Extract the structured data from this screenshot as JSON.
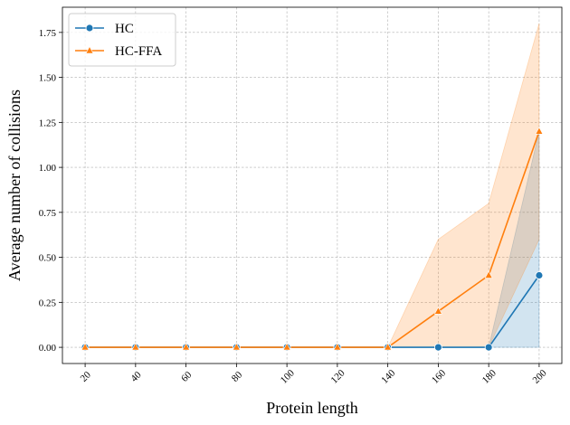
{
  "chart_data": {
    "type": "line",
    "xlabel": "Protein length",
    "ylabel": "Average number of collisions",
    "x": [
      20,
      40,
      60,
      80,
      100,
      120,
      140,
      160,
      180,
      200
    ],
    "xticks": [
      "20",
      "40",
      "60",
      "80",
      "100",
      "120",
      "140",
      "160",
      "180",
      "200"
    ],
    "yticks": [
      "0.00",
      "0.25",
      "0.50",
      "0.75",
      "1.00",
      "1.25",
      "1.50",
      "1.75"
    ],
    "ylim": [
      -0.09,
      1.89
    ],
    "grid": true,
    "legend_position": "top-left",
    "series": [
      {
        "name": "HC",
        "color": "#1f77b4",
        "marker": "circle",
        "values": [
          0,
          0,
          0,
          0,
          0,
          0,
          0,
          0,
          0,
          0.4
        ],
        "band_lower": [
          0,
          0,
          0,
          0,
          0,
          0,
          0,
          0,
          0,
          0
        ],
        "band_upper": [
          0,
          0,
          0,
          0,
          0,
          0,
          0,
          0,
          0,
          1.2
        ]
      },
      {
        "name": "HC-FFA",
        "color": "#ff7f0e",
        "marker": "triangle",
        "values": [
          0,
          0,
          0,
          0,
          0,
          0,
          0,
          0.2,
          0.4,
          1.2
        ],
        "band_lower": [
          0,
          0,
          0,
          0,
          0,
          0,
          0,
          0,
          0,
          0.6
        ],
        "band_upper": [
          0,
          0,
          0,
          0,
          0,
          0,
          0,
          0.6,
          0.8,
          1.8
        ]
      }
    ]
  }
}
